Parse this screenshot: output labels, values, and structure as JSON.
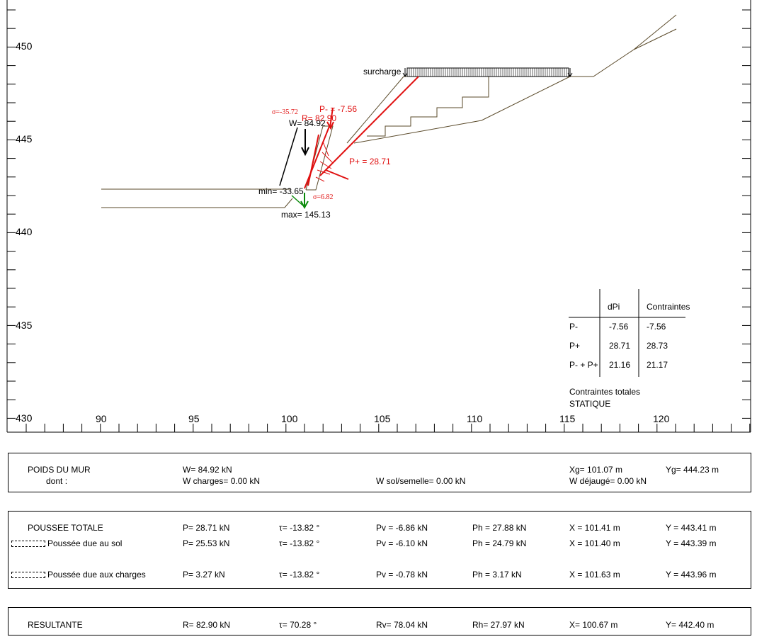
{
  "axes": {
    "x_ticks": [
      "90",
      "95",
      "100",
      "105",
      "110",
      "115",
      "120"
    ],
    "y_ticks": [
      "450",
      "445",
      "440",
      "435",
      "430"
    ]
  },
  "labels": {
    "surcharge": "surcharge",
    "p_minus": "P- = -7.56",
    "r": "R= 82.90",
    "sigma_top": "σ=-35.72",
    "w": "W= 84.92",
    "p_plus": "P+ = 28.71",
    "min": "min= -33.65",
    "sigma_bottom": "σ=6.82",
    "max": "max= 145.13"
  },
  "table": {
    "headers": [
      "",
      "dPi",
      "Contraintes"
    ],
    "rows": [
      [
        "P-",
        "-7.56",
        "-7.56"
      ],
      [
        "P+",
        "28.71",
        "28.73"
      ],
      [
        "P- + P+",
        "21.16",
        "21.17"
      ]
    ],
    "caption1": "Contraintes totales",
    "caption2": "STATIQUE"
  },
  "poids": {
    "title": "POIDS DU MUR",
    "dont": "dont :",
    "w": "W= 84.92 kN",
    "w_charges": "W charges= 0.00 kN",
    "w_sol": "W sol/semelle= 0.00 kN",
    "xg": "Xg= 101.07 m",
    "yg": "Yg= 444.23 m",
    "w_dejauge": "W déjaugé= 0.00 kN"
  },
  "poussee": {
    "rows": [
      {
        "label": "POUSSEE TOTALE",
        "p": "P= 28.71 kN",
        "tau": "τ=  -13.82 °",
        "pv": "Pv = -6.86 kN",
        "ph": "Ph = 27.88 kN",
        "x": "X = 101.41 m",
        "y": "Y = 443.41 m"
      },
      {
        "label": "Poussée due au sol",
        "p": "P= 25.53 kN",
        "tau": "τ=  -13.82 °",
        "pv": "Pv = -6.10 kN",
        "ph": "Ph = 24.79 kN",
        "x": "X = 101.40 m",
        "y": "Y = 443.39 m"
      },
      {
        "label": "Poussée due aux charges",
        "p": "P= 3.27 kN",
        "tau": "τ=  -13.82 °",
        "pv": "Pv = -0.78 kN",
        "ph": "Ph = 3.17 kN",
        "x": "X = 101.63 m",
        "y": "Y = 443.96 m"
      }
    ]
  },
  "resultante": {
    "label": "RESULTANTE",
    "r": "R= 82.90 kN",
    "tau": "τ=  70.28 °",
    "rv": "Rv= 78.04 kN",
    "rh": "Rh= 27.97 kN",
    "x": "X= 100.67 m",
    "y": "Y= 442.40 m"
  },
  "colors": {
    "red": "#e01010",
    "green": "#0a8a0a",
    "dark": "#5a4a2a"
  }
}
